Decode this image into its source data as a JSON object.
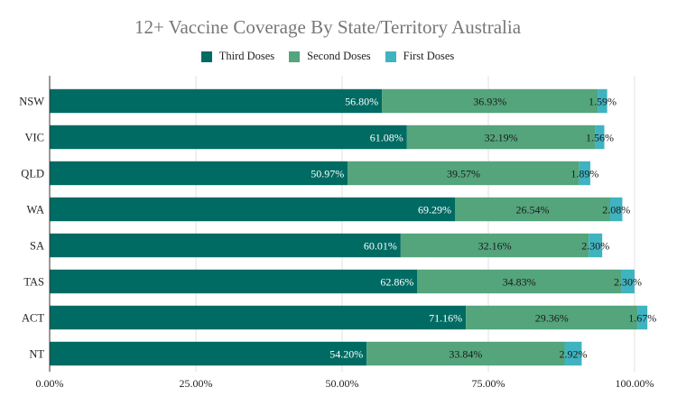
{
  "chart_data": {
    "type": "bar",
    "orientation": "horizontal",
    "stacked": true,
    "title": "12+ Vaccine Coverage By State/Territory Australia",
    "categories": [
      "NSW",
      "VIC",
      "QLD",
      "WA",
      "SA",
      "TAS",
      "ACT",
      "NT"
    ],
    "series": [
      {
        "name": "Third Doses",
        "color": "#006b63",
        "values": [
          56.8,
          61.08,
          50.97,
          69.29,
          60.01,
          62.86,
          71.16,
          54.2
        ],
        "labels": [
          "56.80%",
          "61.08%",
          "50.97%",
          "69.29%",
          "60.01%",
          "62.86%",
          "71.16%",
          "54.20%"
        ]
      },
      {
        "name": "Second Doses",
        "color": "#54a47c",
        "values": [
          36.93,
          32.19,
          39.57,
          26.54,
          32.16,
          34.83,
          29.36,
          33.84
        ],
        "labels": [
          "36.93%",
          "32.19%",
          "39.57%",
          "26.54%",
          "32.16%",
          "34.83%",
          "29.36%",
          "33.84%"
        ]
      },
      {
        "name": "First Doses",
        "color": "#3fb3c0",
        "values": [
          1.59,
          1.56,
          1.89,
          2.08,
          2.3,
          2.3,
          1.67,
          2.92
        ],
        "labels": [
          "1.59%",
          "1.56%",
          "1.89%",
          "2.08%",
          "2.30%",
          "2.30%",
          "1.67%",
          "2.92%"
        ]
      }
    ],
    "xlim": [
      0,
      100
    ],
    "xticks": [
      0,
      25,
      50,
      75,
      100
    ],
    "xtick_labels": [
      "0.00%",
      "25.00%",
      "50.00%",
      "75.00%",
      "100.00%"
    ],
    "grid": true,
    "legend_position": "top-center"
  }
}
